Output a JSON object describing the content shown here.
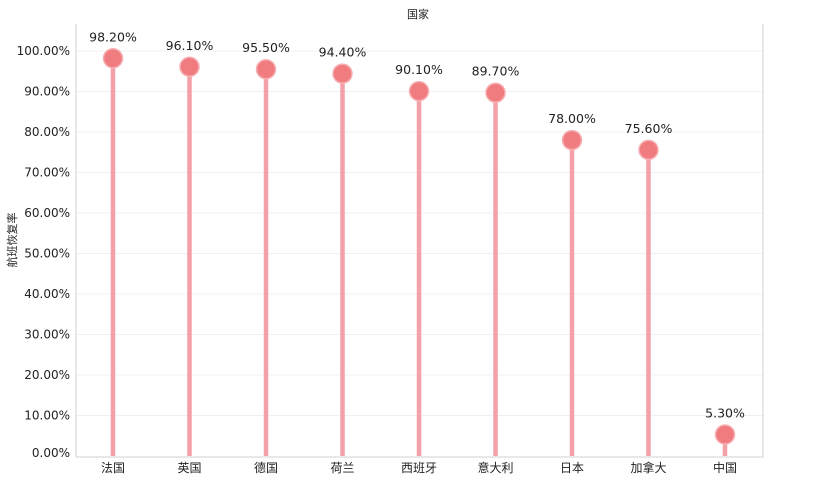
{
  "chart_data": {
    "type": "lollipop",
    "title": "国家",
    "xlabel": "",
    "ylabel": "航班恢复率",
    "ylim": [
      0,
      100
    ],
    "yticks": [
      0,
      10,
      20,
      30,
      40,
      50,
      60,
      70,
      80,
      90,
      100
    ],
    "ytick_labels": [
      "0.00%",
      "10.00%",
      "20.00%",
      "30.00%",
      "40.00%",
      "50.00%",
      "60.00%",
      "70.00%",
      "80.00%",
      "90.00%",
      "100.00%"
    ],
    "categories": [
      "法国",
      "英国",
      "德国",
      "荷兰",
      "西班牙",
      "意大利",
      "日本",
      "加拿大",
      "中国"
    ],
    "values": [
      98.2,
      96.1,
      95.5,
      94.4,
      90.1,
      89.7,
      78.0,
      75.6,
      5.3
    ],
    "value_labels": [
      "98.20%",
      "96.10%",
      "95.50%",
      "94.40%",
      "90.10%",
      "89.70%",
      "78.00%",
      "75.60%",
      "5.30%"
    ],
    "grid": true,
    "colors": {
      "stem": "#f4a0a8",
      "marker": "#f07c80",
      "marker_edge": "#f6b0b4",
      "grid": "#f0f0f0",
      "axis": "#d0d0d0"
    }
  }
}
